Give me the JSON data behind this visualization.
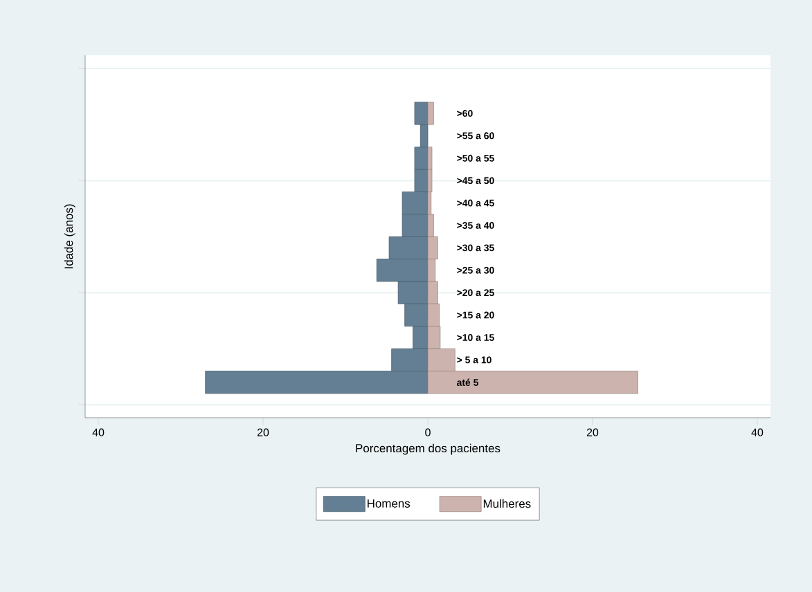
{
  "chart_data": {
    "type": "bar",
    "orientation": "horizontal",
    "xlabel": "Porcentagem dos pacientes",
    "ylabel": "Idade (anos)",
    "categories": [
      ">60",
      ">55 a 60",
      ">50 a 55",
      ">45 a 50",
      ">40 a 45",
      ">35 a 40",
      ">30 a 35",
      ">25 a 30",
      ">20 a 25",
      ">15 a 20",
      ">10 a 15",
      "> 5 a 10",
      "até 5"
    ],
    "series": [
      {
        "name": "Homens",
        "color": "#647f94",
        "values": [
          -1.6,
          -0.9,
          -1.6,
          -1.6,
          -3.1,
          -3.1,
          -4.7,
          -6.2,
          -3.6,
          -2.8,
          -1.8,
          -4.4,
          -27.0
        ]
      },
      {
        "name": "Mulheres",
        "color": "#cdb3ae",
        "values": [
          0.7,
          null,
          0.5,
          0.5,
          0.4,
          0.7,
          1.2,
          0.9,
          1.2,
          1.4,
          1.5,
          3.3,
          25.5
        ]
      }
    ],
    "xlim": [
      -41.6,
      41.6
    ],
    "xticks": [
      {
        "value": -40,
        "label": "40"
      },
      {
        "value": -20,
        "label": "20"
      },
      0,
      {
        "value": 20,
        "label": "20"
      },
      {
        "value": 40,
        "label": "40"
      }
    ],
    "grid": "y",
    "legend": "bottom",
    "stacked": true
  }
}
